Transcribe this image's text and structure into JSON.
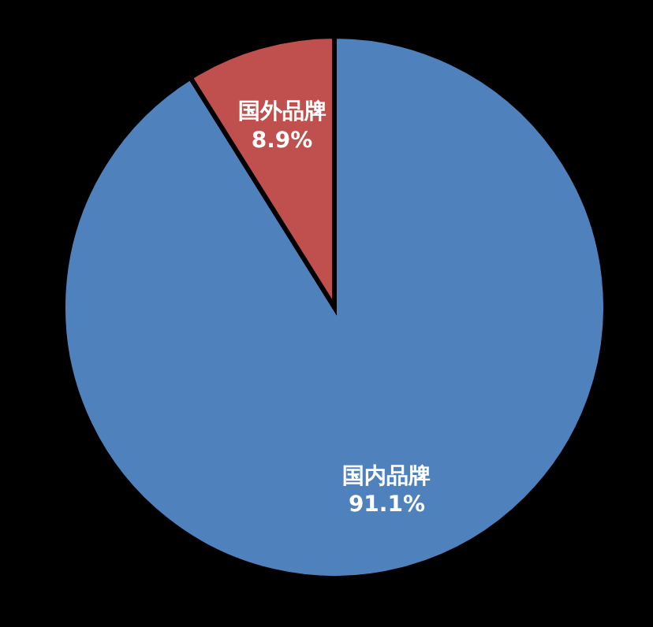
{
  "chart_data": {
    "type": "pie",
    "categories": [
      "国内品牌",
      "国外品牌"
    ],
    "values": [
      91.1,
      8.9
    ],
    "colors": [
      "#4f81bd",
      "#c0504d"
    ],
    "value_labels": [
      "91.1%",
      "8.9%"
    ],
    "legend": false
  }
}
